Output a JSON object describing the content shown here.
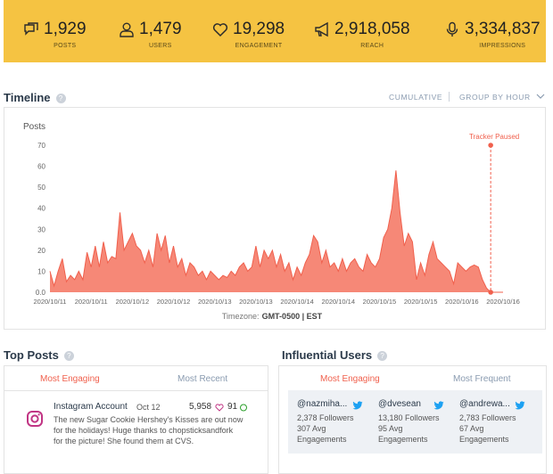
{
  "stats": [
    {
      "value": "1,929",
      "label": "POSTS"
    },
    {
      "value": "1,479",
      "label": "USERS"
    },
    {
      "value": "19,298",
      "label": "ENGAGEMENT"
    },
    {
      "value": "2,918,058",
      "label": "REACH"
    },
    {
      "value": "3,334,837",
      "label": "IMPRESSIONS"
    }
  ],
  "timeline": {
    "title": "Timeline",
    "controls": [
      "CUMULATIVE",
      "GROUP BY HOUR"
    ],
    "timezone": {
      "label": "Timezone:",
      "value": "GMT-0500 | EST"
    }
  },
  "chart_data": {
    "type": "area",
    "y_label": "Posts",
    "categories": [
      "2020/10/11",
      null,
      null,
      null,
      null,
      null,
      null,
      null,
      null,
      null,
      "2020/10/11",
      null,
      null,
      null,
      null,
      null,
      null,
      null,
      null,
      null,
      "2020/10/12",
      null,
      null,
      null,
      null,
      null,
      null,
      null,
      null,
      null,
      "2020/10/12",
      null,
      null,
      null,
      null,
      null,
      null,
      null,
      null,
      null,
      "2020/10/13",
      null,
      null,
      null,
      null,
      null,
      null,
      null,
      null,
      null,
      "2020/10/13",
      null,
      null,
      null,
      null,
      null,
      null,
      null,
      null,
      null,
      "2020/10/14",
      null,
      null,
      null,
      null,
      null,
      null,
      null,
      null,
      null,
      "2020/10/14",
      null,
      null,
      null,
      null,
      null,
      null,
      null,
      null,
      null,
      "2020/10/15",
      null,
      null,
      null,
      null,
      null,
      null,
      null,
      null,
      null,
      "2020/10/15",
      null,
      null,
      null,
      null,
      null,
      null,
      null,
      null,
      null,
      "2020/10/16",
      null,
      null,
      null,
      null,
      null,
      null,
      null,
      null,
      null,
      "2020/10/16"
    ],
    "series": [
      {
        "name": "Posts",
        "color": "#f4735f",
        "values": [
          10,
          3,
          10,
          16,
          5,
          8,
          6,
          10,
          6,
          19,
          12,
          22,
          12,
          24,
          14,
          17,
          16,
          38,
          20,
          24,
          28,
          22,
          20,
          14,
          20,
          12,
          28,
          20,
          27,
          14,
          22,
          12,
          16,
          8,
          14,
          12,
          8,
          10,
          6,
          10,
          8,
          6,
          8,
          7,
          10,
          8,
          12,
          14,
          10,
          12,
          22,
          12,
          20,
          16,
          20,
          12,
          18,
          10,
          14,
          6,
          12,
          8,
          14,
          18,
          27,
          24,
          14,
          20,
          12,
          14,
          10,
          16,
          10,
          14,
          16,
          12,
          10,
          18,
          14,
          12,
          16,
          26,
          30,
          40,
          58,
          38,
          22,
          28,
          24,
          6,
          14,
          8,
          18,
          24,
          16,
          14,
          12,
          10,
          4,
          14,
          12,
          10,
          12,
          13,
          12,
          6,
          2,
          0,
          0,
          0,
          0
        ]
      }
    ],
    "ylim": [
      0,
      70
    ],
    "yticks": [
      {
        "value": 0,
        "label": "0.0"
      },
      10,
      20,
      30,
      40,
      50,
      60,
      70
    ],
    "grid": false,
    "annotations": [
      {
        "text": "Tracker Paused",
        "category_index": 107,
        "value": 70,
        "color": "#f0604d"
      }
    ]
  },
  "top_posts": {
    "title": "Top Posts",
    "tabs": [
      "Most Engaging",
      "Most Recent"
    ],
    "posts": [
      {
        "account": "Instagram Account",
        "date": "Oct 12",
        "likes": "5,958",
        "comments": "91",
        "lines": [
          "The new Sugar Cookie Hershey's Kisses are out now",
          "for the holidays! Huge thanks to chopsticksandfork",
          "for the picture! She found them at CVS."
        ]
      }
    ]
  },
  "influential_users": {
    "title": "Influential Users",
    "tabs": [
      "Most Engaging",
      "Most Frequent"
    ],
    "users": [
      {
        "handle": "@nazmiha...",
        "followers": "2,378 Followers",
        "avg": "307 Avg Engagements"
      },
      {
        "handle": "@dvesean",
        "followers": "13,180 Followers",
        "avg": "95 Avg Engagements"
      },
      {
        "handle": "@andrewa...",
        "followers": "2,783 Followers",
        "avg": "67 Avg Engagements"
      }
    ]
  }
}
